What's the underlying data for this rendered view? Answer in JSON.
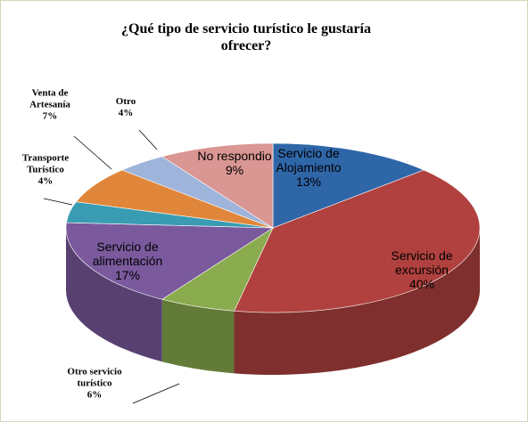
{
  "chart_data": {
    "type": "pie3d",
    "title": "¿Qué tipo de servicio turístico le gustaría ofrecer?",
    "categories": [
      "Servicio de Alojamiento",
      "Servicio de excursión",
      "Otro servicio turístico",
      "Servicio de alimentación",
      "Transporte Turístico",
      "Venta de Artesanía",
      "Otro",
      "No respondio"
    ],
    "values": [
      13,
      40,
      6,
      17,
      4,
      7,
      4,
      9
    ],
    "value_labels": [
      "13%",
      "40%",
      "6%",
      "17%",
      "4%",
      "7%",
      "4%",
      "9%"
    ],
    "colors": [
      "#2f66a8",
      "#b0413e",
      "#8aab4e",
      "#7a5a9d",
      "#3a9cb2",
      "#e0863a",
      "#9fb4da",
      "#d99693"
    ]
  }
}
